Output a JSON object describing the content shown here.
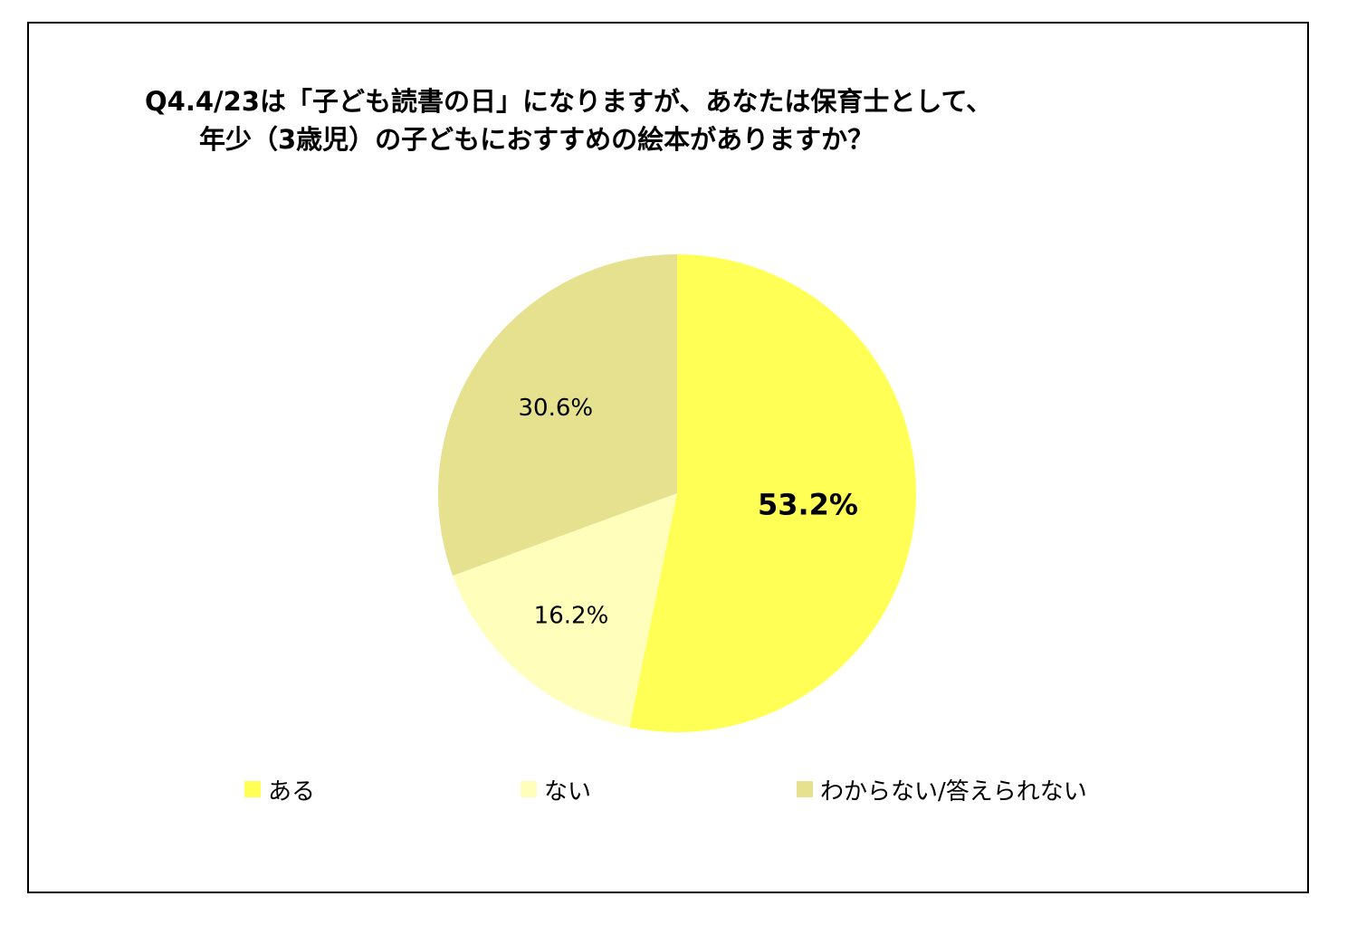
{
  "title_lines": [
    "Q4.4/23は「子ども読書の日」になりますが、あなたは保育士として、",
    "年少（3歳児）の子どもにおすすめの絵本がありますか？"
  ],
  "chart_data": {
    "type": "pie",
    "title": "Q4.4/23は「子ども読書の日」になりますが、あなたは保育士として、年少（3歳児）の子どもにおすすめの絵本がありますか？",
    "categories": [
      "ある",
      "ない",
      "わからない/答えられない"
    ],
    "values": [
      53.2,
      16.2,
      30.6
    ],
    "labels": [
      "53.2%",
      "16.2%",
      "30.6%"
    ],
    "colors": [
      "#FFFF55",
      "#FFFFBB",
      "#E5E18E"
    ],
    "start_angle": "12 o'clock",
    "direction": "clockwise",
    "legend_position": "bottom"
  }
}
